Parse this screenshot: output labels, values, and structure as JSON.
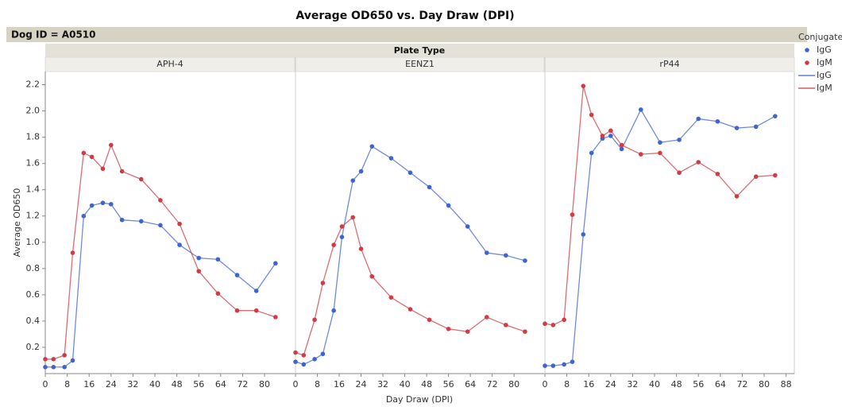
{
  "title": "Average OD650 vs. Day Draw (DPI)",
  "group_label": "Dog ID = A0510",
  "panel_group": "Plate Type",
  "ylabel": "Average OD650",
  "xlabel": "Day Draw (DPI)",
  "legend_title": "Conjugate",
  "chart_data": [
    {
      "type": "line",
      "title": "APH-4",
      "x": [
        0,
        3,
        7,
        10,
        14,
        17,
        21,
        24,
        28,
        35,
        42,
        49,
        56,
        63,
        70,
        77,
        84
      ],
      "series": [
        {
          "name": "IgG",
          "color": "#3f64d0",
          "values": [
            0.05,
            0.05,
            0.05,
            0.1,
            1.2,
            1.28,
            1.3,
            1.29,
            1.17,
            1.16,
            1.13,
            0.98,
            0.88,
            0.87,
            0.75,
            0.63,
            0.84
          ]
        },
        {
          "name": "IgM",
          "color": "#d03c46",
          "values": [
            0.11,
            0.11,
            0.14,
            0.92,
            1.68,
            1.65,
            1.56,
            1.74,
            1.54,
            1.48,
            1.32,
            1.14,
            0.78,
            0.61,
            0.48,
            0.48,
            0.43
          ]
        }
      ],
      "xlim": [
        0,
        91
      ],
      "ylim": [
        0,
        2.3
      ],
      "xticks": [
        0,
        8,
        16,
        24,
        32,
        40,
        48,
        56,
        64,
        72,
        80
      ],
      "yticks": [
        0.2,
        0.4,
        0.6,
        0.8,
        {
          "value": 1,
          "label": "1.0"
        },
        1.2,
        1.4,
        1.6,
        1.8,
        {
          "value": 2,
          "label": "2.0"
        },
        2.2
      ]
    },
    {
      "type": "line",
      "title": "EENZ1",
      "x": [
        0,
        3,
        7,
        10,
        14,
        17,
        21,
        24,
        28,
        35,
        42,
        49,
        56,
        63,
        70,
        77,
        84
      ],
      "series": [
        {
          "name": "IgG",
          "color": "#3f64d0",
          "values": [
            0.09,
            0.07,
            0.11,
            0.15,
            0.48,
            1.04,
            1.47,
            1.54,
            1.73,
            1.64,
            1.53,
            1.42,
            1.28,
            1.12,
            0.92,
            0.9,
            0.86
          ]
        },
        {
          "name": "IgM",
          "color": "#d03c46",
          "values": [
            0.16,
            0.14,
            0.41,
            0.69,
            0.98,
            1.12,
            1.19,
            0.95,
            0.74,
            0.58,
            0.49,
            0.41,
            0.34,
            0.32,
            0.43,
            0.37,
            0.32
          ]
        }
      ],
      "xlim": [
        0,
        91
      ],
      "ylim": [
        0,
        2.3
      ],
      "xticks": [
        0,
        8,
        16,
        24,
        32,
        40,
        48,
        56,
        64,
        72,
        80
      ]
    },
    {
      "type": "line",
      "title": "rP44",
      "x": [
        0,
        3,
        7,
        10,
        14,
        17,
        21,
        24,
        28,
        35,
        42,
        49,
        56,
        63,
        70,
        77,
        84
      ],
      "series": [
        {
          "name": "IgG",
          "color": "#3f64d0",
          "values": [
            0.06,
            0.06,
            0.07,
            0.09,
            1.06,
            1.68,
            1.79,
            1.81,
            1.71,
            2.01,
            1.76,
            1.78,
            1.94,
            1.92,
            1.87,
            1.88,
            1.96
          ]
        },
        {
          "name": "IgM",
          "color": "#d03c46",
          "values": [
            0.38,
            0.37,
            0.41,
            1.21,
            2.19,
            1.97,
            1.81,
            1.85,
            1.74,
            1.67,
            1.68,
            1.53,
            1.61,
            1.52,
            1.35,
            1.5,
            1.51
          ]
        }
      ],
      "xlim": [
        0,
        91
      ],
      "ylim": [
        0,
        2.3
      ],
      "xticks": [
        0,
        8,
        16,
        24,
        32,
        40,
        48,
        56,
        64,
        72,
        80,
        88
      ]
    }
  ]
}
